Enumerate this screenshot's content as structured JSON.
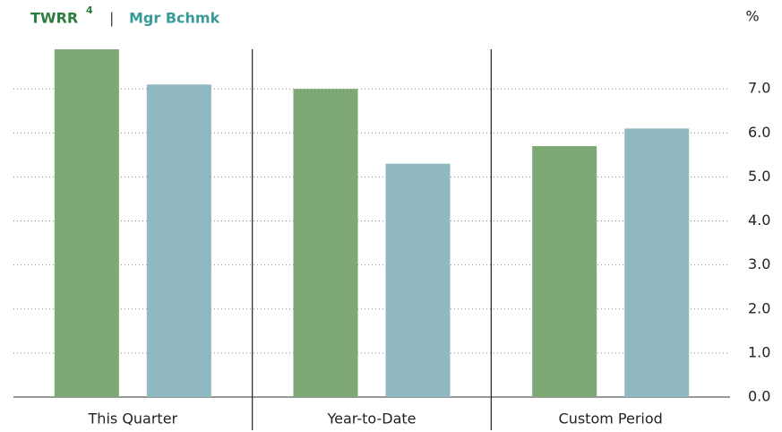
{
  "chart_data": {
    "type": "bar",
    "legend_separator": "|",
    "footnote": "4",
    "y_unit": "%",
    "categories": [
      "This Quarter",
      "Year-to-Date",
      "Custom Period"
    ],
    "series": [
      {
        "name": "TWRR",
        "color": "#7ea874",
        "legend_color": "#2e7d3e",
        "values": [
          7.9,
          7.0,
          5.7
        ]
      },
      {
        "name": "Mgr Bchmk",
        "color": "#8fb8c0",
        "legend_color": "#3a9a9a",
        "values": [
          7.1,
          5.3,
          6.1
        ]
      }
    ],
    "ylim": [
      0,
      7.9
    ],
    "yticks": [
      {
        "value": 0,
        "label": "0.0"
      },
      {
        "value": 1,
        "label": "1.0"
      },
      {
        "value": 2,
        "label": "2.0"
      },
      {
        "value": 3,
        "label": "3.0"
      },
      {
        "value": 4,
        "label": "4.0"
      },
      {
        "value": 5,
        "label": "5.0"
      },
      {
        "value": 6,
        "label": "6.0"
      },
      {
        "value": 7,
        "label": "7.0"
      }
    ],
    "grid": true
  }
}
